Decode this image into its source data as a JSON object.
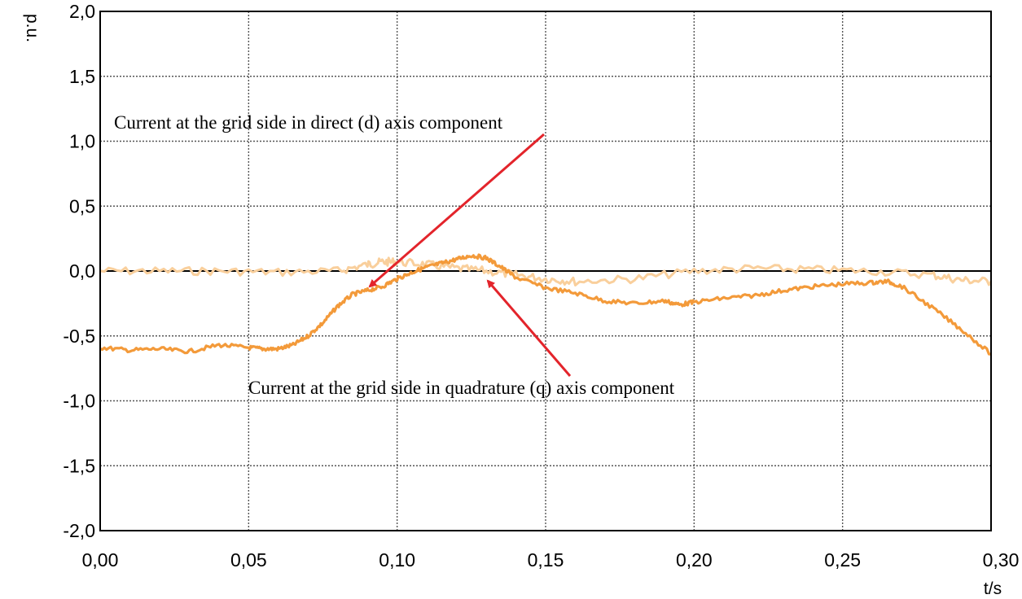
{
  "chart_data": {
    "type": "line",
    "title": "",
    "xlabel": "t/s",
    "ylabel": "p.u.",
    "xlim": [
      0.0,
      0.3
    ],
    "ylim": [
      -2.0,
      2.0
    ],
    "x_ticks": [
      "0,00",
      "0,05",
      "0,10",
      "0,15",
      "0,20",
      "0,25",
      "0,30"
    ],
    "y_ticks": [
      "2,0",
      "1,5",
      "1,0",
      "0,5",
      "0,0",
      "-0,5",
      "-1,0",
      "-1,5",
      "-2,0"
    ],
    "grid": true,
    "series": [
      {
        "color": "#f39a3a",
        "x": [
          0.0,
          0.01,
          0.02,
          0.03,
          0.04,
          0.05,
          0.055,
          0.06,
          0.065,
          0.07,
          0.075,
          0.08,
          0.085,
          0.09,
          0.095,
          0.1,
          0.105,
          0.11,
          0.115,
          0.12,
          0.125,
          0.13,
          0.135,
          0.14,
          0.15,
          0.16,
          0.17,
          0.18,
          0.19,
          0.195,
          0.2,
          0.21,
          0.22,
          0.23,
          0.24,
          0.25,
          0.26,
          0.265,
          0.27,
          0.28,
          0.29,
          0.3
        ],
        "y": [
          -0.59,
          -0.61,
          -0.6,
          -0.62,
          -0.57,
          -0.59,
          -0.6,
          -0.6,
          -0.57,
          -0.5,
          -0.4,
          -0.27,
          -0.18,
          -0.15,
          -0.12,
          -0.06,
          -0.01,
          0.03,
          0.06,
          0.09,
          0.12,
          0.1,
          0.03,
          -0.05,
          -0.13,
          -0.17,
          -0.23,
          -0.25,
          -0.23,
          -0.26,
          -0.24,
          -0.21,
          -0.19,
          -0.15,
          -0.12,
          -0.1,
          -0.09,
          -0.08,
          -0.12,
          -0.28,
          -0.45,
          -0.64
        ]
      },
      {
        "color": "#f9cf9c",
        "x": [
          0.0,
          0.02,
          0.04,
          0.06,
          0.08,
          0.09,
          0.095,
          0.1,
          0.11,
          0.12,
          0.13,
          0.14,
          0.15,
          0.16,
          0.18,
          0.2,
          0.22,
          0.24,
          0.26,
          0.28,
          0.29,
          0.3
        ],
        "y": [
          0.0,
          0.0,
          0.0,
          -0.01,
          0.0,
          0.05,
          0.07,
          0.07,
          0.05,
          0.02,
          0.0,
          -0.03,
          -0.06,
          -0.08,
          -0.06,
          0.0,
          0.02,
          0.01,
          0.0,
          -0.03,
          -0.07,
          -0.08
        ]
      }
    ],
    "annotations": [
      {
        "text": "Current at the grid side in direct (d) axis  component"
      },
      {
        "text": "Current at the grid side in quadrature (q) axis  component"
      }
    ]
  }
}
